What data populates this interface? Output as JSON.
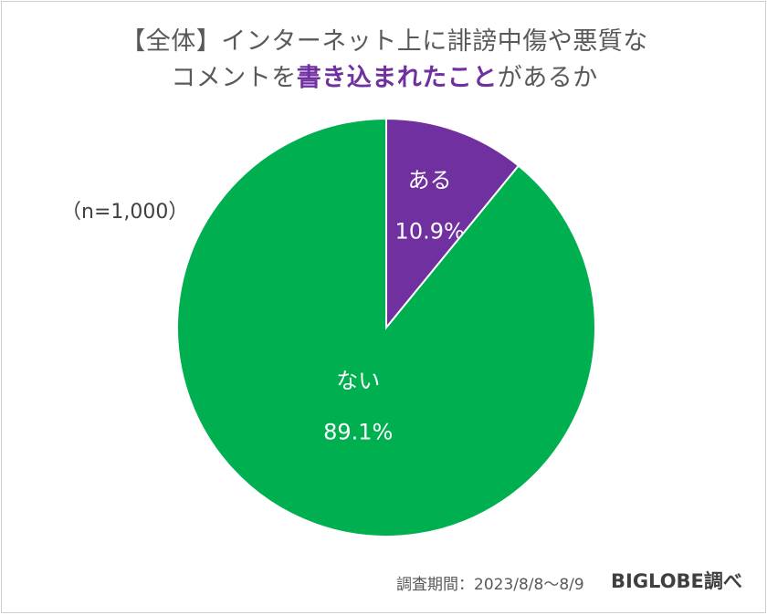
{
  "title": {
    "line1": "【全体】インターネット上に誹謗中傷や悪質な",
    "line2_pre": "コメントを",
    "line2_highlight": "書き込まれたこと",
    "line2_post": "があるか"
  },
  "sample_size": "（n=1,000）",
  "footer": {
    "period": "調査期間：2023/8/8～8/9",
    "source": "BIGLOBE調べ"
  },
  "colors": {
    "aru": "#7030a0",
    "nai": "#00b050",
    "text_dark": "#595959",
    "highlight": "#7030a0"
  },
  "chart_data": {
    "type": "pie",
    "title": "【全体】インターネット上に誹謗中傷や悪質なコメントを書き込まれたことがあるか",
    "slices": [
      {
        "label": "ある",
        "value": 10.9,
        "display": "10.9%",
        "color": "#7030a0"
      },
      {
        "label": "ない",
        "value": 89.1,
        "display": "89.1%",
        "color": "#00b050"
      }
    ]
  }
}
